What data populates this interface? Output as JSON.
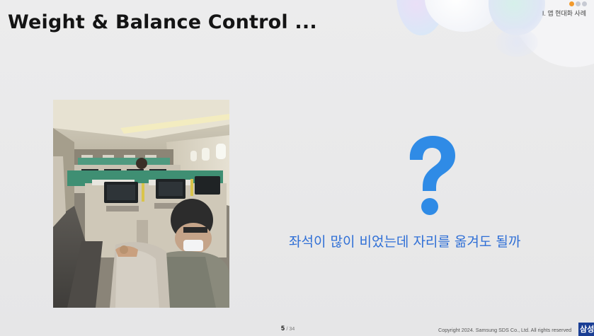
{
  "slide": {
    "title": "Weight & Balance Control ...",
    "section_label": "I. 앱 현대화 사례",
    "question_glyph": "?",
    "question_text": "좌석이 많이 비었는데 자리를 옮겨도 될까",
    "page_current": "5",
    "page_total": "/ 34",
    "copyright": "Copyright 2024. Samsung SDS Co., Ltd. All rights reserved",
    "brand_tag": "삼성",
    "photo_subject": "airplane-cabin-photo"
  },
  "colors": {
    "accent_blue": "#2f8be6",
    "question_text": "#2f6fd6",
    "title": "#141414",
    "brand_tag_bg": "#1a3e94",
    "dot_orange": "#f29a2e"
  }
}
